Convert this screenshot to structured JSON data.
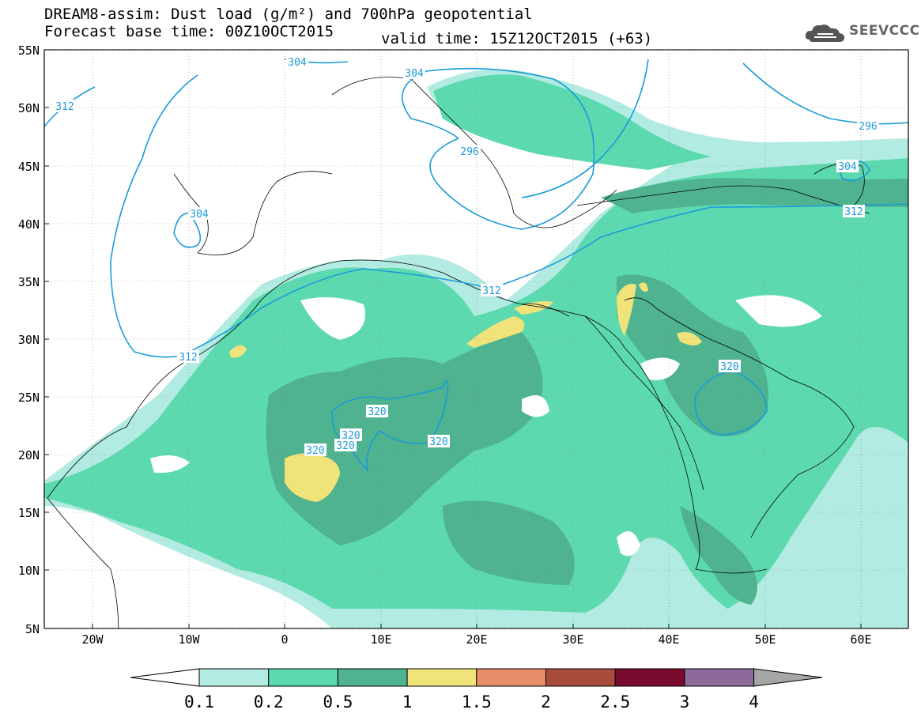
{
  "header": {
    "title": "DREAM8-assim: Dust load (g/m²) and 700hPa geopotential",
    "base_time": "Forecast base time: 00Z10OCT2015",
    "valid_time": "valid time: 15Z12OCT2015 (+63)",
    "logo_text": "SEEVCCC"
  },
  "map": {
    "lat_labels": [
      "55N",
      "50N",
      "45N",
      "40N",
      "35N",
      "30N",
      "25N",
      "20N",
      "15N",
      "10N",
      "5N"
    ],
    "lon_labels": [
      "20W",
      "10W",
      "0",
      "10E",
      "20E",
      "30E",
      "40E",
      "50E",
      "60E"
    ],
    "contour_labels": [
      "312",
      "304",
      "304",
      "296",
      "296",
      "304",
      "312",
      "304",
      "312",
      "312",
      "320",
      "320",
      "320",
      "320",
      "320",
      "320"
    ]
  },
  "colorbar": {
    "labels": [
      "0.1",
      "0.2",
      "0.5",
      "1",
      "1.5",
      "2",
      "2.5",
      "3",
      "4"
    ],
    "colors": [
      "#b2ebe2",
      "#5dd9b0",
      "#4fb38f",
      "#f0e37a",
      "#e88e68",
      "#a84c3e",
      "#7a0a2e",
      "#8e6a9a",
      "#a6a6a6"
    ]
  }
}
